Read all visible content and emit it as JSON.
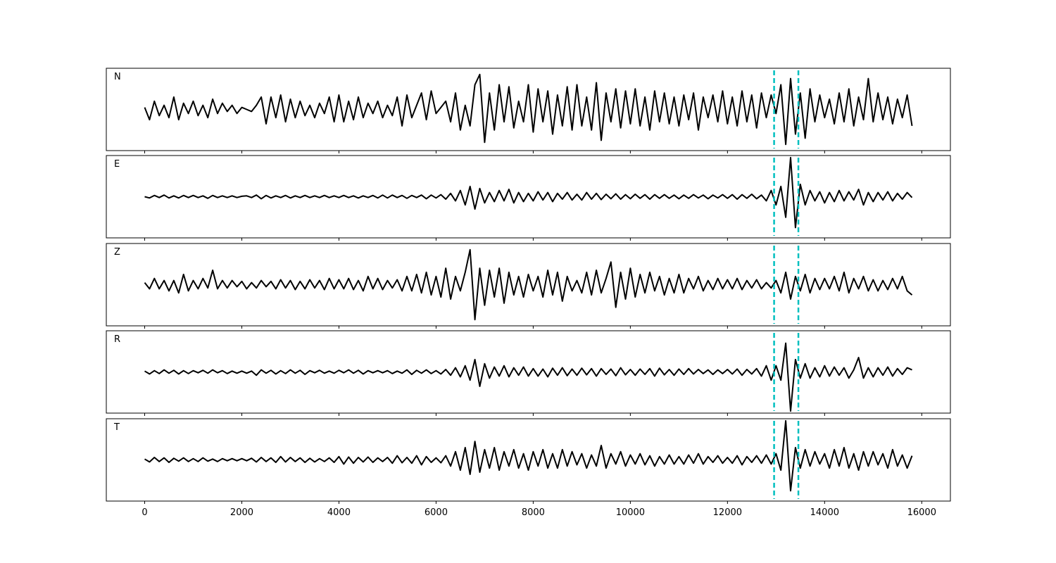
{
  "chart_data": {
    "type": "line",
    "color": "#000000",
    "pick_color": "#00bfbf",
    "xlim": [
      -790,
      16590
    ],
    "xticks": [
      0,
      2000,
      4000,
      6000,
      8000,
      10000,
      12000,
      14000,
      16000
    ],
    "ylim": [
      -1,
      1
    ],
    "picks": [
      12960,
      13460
    ],
    "x": [
      0,
      100,
      200,
      300,
      400,
      500,
      600,
      700,
      800,
      900,
      1000,
      1100,
      1200,
      1300,
      1400,
      1500,
      1600,
      1700,
      1800,
      1900,
      2000,
      2100,
      2200,
      2300,
      2400,
      2500,
      2600,
      2700,
      2800,
      2900,
      3000,
      3100,
      3200,
      3300,
      3400,
      3500,
      3600,
      3700,
      3800,
      3900,
      4000,
      4100,
      4200,
      4300,
      4400,
      4500,
      4600,
      4700,
      4800,
      4900,
      5000,
      5100,
      5200,
      5300,
      5400,
      5500,
      5600,
      5700,
      5800,
      5900,
      6000,
      6100,
      6200,
      6300,
      6400,
      6500,
      6600,
      6700,
      6800,
      6900,
      7000,
      7100,
      7200,
      7300,
      7400,
      7500,
      7600,
      7700,
      7800,
      7900,
      8000,
      8100,
      8200,
      8300,
      8400,
      8500,
      8600,
      8700,
      8800,
      8900,
      9000,
      9100,
      9200,
      9300,
      9400,
      9500,
      9600,
      9700,
      9800,
      9900,
      10000,
      10100,
      10200,
      10300,
      10400,
      10500,
      10600,
      10700,
      10800,
      10900,
      11000,
      11100,
      11200,
      11300,
      11400,
      11500,
      11600,
      11700,
      11800,
      11900,
      12000,
      12100,
      12200,
      12300,
      12400,
      12500,
      12600,
      12700,
      12800,
      12900,
      13000,
      13100,
      13200,
      13300,
      13400,
      13500,
      13600,
      13700,
      13800,
      13900,
      14000,
      14100,
      14200,
      14300,
      14400,
      14500,
      14600,
      14700,
      14800,
      14900,
      15000,
      15100,
      15200,
      15300,
      15400,
      15500,
      15600,
      15700,
      15800
    ],
    "panels": [
      {
        "title": "N",
        "values": [
          0.05,
          -0.25,
          0.2,
          -0.15,
          0.1,
          -0.2,
          0.3,
          -0.25,
          0.15,
          -0.1,
          0.2,
          -0.15,
          0.1,
          -0.2,
          0.25,
          -0.1,
          0.15,
          -0.05,
          0.1,
          -0.1,
          0.05,
          0.0,
          -0.05,
          0.1,
          0.3,
          -0.35,
          0.3,
          -0.2,
          0.35,
          -0.3,
          0.25,
          -0.2,
          0.2,
          -0.15,
          0.1,
          -0.2,
          0.15,
          -0.1,
          0.3,
          -0.3,
          0.35,
          -0.3,
          0.2,
          -0.25,
          0.3,
          -0.2,
          0.15,
          -0.1,
          0.2,
          -0.2,
          0.1,
          -0.15,
          0.3,
          -0.4,
          0.35,
          -0.2,
          0.1,
          0.4,
          -0.25,
          0.45,
          -0.1,
          0.05,
          0.2,
          -0.3,
          0.4,
          -0.5,
          0.1,
          -0.4,
          0.6,
          0.85,
          -0.8,
          0.4,
          -0.5,
          0.6,
          -0.3,
          0.55,
          -0.45,
          0.2,
          -0.3,
          0.6,
          -0.55,
          0.5,
          -0.3,
          0.45,
          -0.6,
          0.35,
          -0.4,
          0.55,
          -0.5,
          0.6,
          -0.4,
          0.3,
          -0.5,
          0.65,
          -0.75,
          0.4,
          -0.3,
          0.5,
          -0.45,
          0.45,
          -0.35,
          0.5,
          -0.4,
          0.3,
          -0.5,
          0.45,
          -0.3,
          0.4,
          -0.35,
          0.3,
          -0.4,
          0.35,
          -0.25,
          0.4,
          -0.5,
          0.3,
          -0.2,
          0.35,
          -0.3,
          0.45,
          -0.35,
          0.3,
          -0.4,
          0.45,
          -0.3,
          0.35,
          -0.45,
          0.4,
          -0.2,
          0.35,
          -0.1,
          0.6,
          -0.85,
          0.75,
          -0.6,
          0.4,
          -0.7,
          0.5,
          -0.3,
          0.35,
          -0.2,
          0.25,
          -0.35,
          0.4,
          -0.3,
          0.5,
          -0.4,
          0.3,
          -0.25,
          0.75,
          -0.3,
          0.4,
          -0.25,
          0.3,
          -0.35,
          0.25,
          -0.2,
          0.35,
          -0.4
        ]
      },
      {
        "title": "E",
        "values": [
          0.0,
          -0.03,
          0.03,
          -0.02,
          0.04,
          -0.03,
          0.02,
          -0.03,
          0.03,
          -0.02,
          0.03,
          -0.02,
          0.02,
          -0.04,
          0.03,
          -0.02,
          0.02,
          -0.02,
          0.02,
          -0.02,
          0.01,
          0.02,
          -0.02,
          0.04,
          -0.05,
          0.03,
          -0.03,
          0.02,
          -0.02,
          0.03,
          -0.03,
          0.02,
          -0.02,
          0.03,
          -0.02,
          0.02,
          -0.02,
          0.03,
          -0.02,
          0.02,
          -0.02,
          0.03,
          -0.02,
          0.02,
          -0.03,
          0.02,
          -0.02,
          0.03,
          -0.03,
          0.04,
          -0.03,
          0.04,
          -0.02,
          0.03,
          -0.04,
          0.03,
          -0.02,
          0.04,
          -0.05,
          0.04,
          -0.03,
          0.05,
          -0.06,
          0.08,
          -0.1,
          0.15,
          -0.2,
          0.25,
          -0.3,
          0.2,
          -0.15,
          0.1,
          -0.12,
          0.15,
          -0.1,
          0.18,
          -0.15,
          0.1,
          -0.12,
          0.08,
          -0.1,
          0.12,
          -0.08,
          0.1,
          -0.12,
          0.08,
          -0.06,
          0.1,
          -0.08,
          0.06,
          -0.08,
          0.1,
          -0.06,
          0.08,
          -0.07,
          0.06,
          -0.05,
          0.07,
          -0.06,
          0.05,
          -0.05,
          0.06,
          -0.04,
          0.05,
          -0.06,
          0.05,
          -0.04,
          0.05,
          -0.04,
          0.04,
          -0.05,
          0.04,
          -0.04,
          0.05,
          -0.03,
          0.04,
          -0.05,
          0.04,
          -0.03,
          0.05,
          -0.04,
          0.05,
          -0.06,
          0.05,
          -0.04,
          0.06,
          -0.05,
          0.04,
          -0.1,
          0.15,
          -0.2,
          0.25,
          -0.5,
          0.95,
          -0.75,
          0.3,
          -0.2,
          0.15,
          -0.1,
          0.12,
          -0.15,
          0.1,
          -0.12,
          0.15,
          -0.1,
          0.12,
          -0.08,
          0.18,
          -0.2,
          0.1,
          -0.12,
          0.1,
          -0.08,
          0.12,
          -0.1,
          0.08,
          -0.06,
          0.1,
          -0.02
        ]
      },
      {
        "title": "Z",
        "values": [
          0.05,
          -0.1,
          0.15,
          -0.1,
          0.1,
          -0.15,
          0.1,
          -0.2,
          0.25,
          -0.15,
          0.1,
          -0.1,
          0.15,
          -0.08,
          0.35,
          -0.1,
          0.1,
          -0.08,
          0.1,
          -0.05,
          0.08,
          -0.1,
          0.05,
          -0.08,
          0.1,
          -0.05,
          0.08,
          -0.1,
          0.12,
          -0.08,
          0.1,
          -0.12,
          0.08,
          -0.1,
          0.12,
          -0.08,
          0.1,
          -0.12,
          0.15,
          -0.1,
          0.12,
          -0.1,
          0.15,
          -0.12,
          0.1,
          -0.15,
          0.2,
          -0.1,
          0.15,
          -0.12,
          0.1,
          -0.08,
          0.12,
          -0.15,
          0.2,
          -0.15,
          0.25,
          -0.2,
          0.3,
          -0.25,
          0.2,
          -0.3,
          0.4,
          -0.35,
          0.2,
          -0.15,
          0.3,
          0.85,
          -0.85,
          0.4,
          -0.5,
          0.35,
          -0.3,
          0.4,
          -0.45,
          0.3,
          -0.25,
          0.2,
          -0.3,
          0.25,
          -0.15,
          0.2,
          -0.3,
          0.35,
          -0.25,
          0.3,
          -0.4,
          0.2,
          -0.15,
          0.1,
          -0.2,
          0.3,
          -0.25,
          0.35,
          -0.2,
          0.15,
          0.55,
          -0.55,
          0.3,
          -0.35,
          0.4,
          -0.3,
          0.25,
          -0.2,
          0.3,
          -0.15,
          0.2,
          -0.25,
          0.15,
          -0.2,
          0.25,
          -0.2,
          0.15,
          -0.1,
          0.2,
          -0.15,
          0.1,
          -0.12,
          0.15,
          -0.1,
          0.12,
          -0.1,
          0.15,
          -0.12,
          0.1,
          -0.08,
          0.12,
          -0.1,
          0.05,
          -0.08,
          0.1,
          -0.2,
          0.3,
          -0.35,
          0.2,
          -0.15,
          0.25,
          -0.2,
          0.15,
          -0.12,
          0.15,
          -0.1,
          0.2,
          -0.15,
          0.3,
          -0.2,
          0.15,
          -0.1,
          0.2,
          -0.15,
          0.12,
          -0.15,
          0.1,
          -0.12,
          0.15,
          -0.1,
          0.2,
          -0.15,
          -0.25
        ]
      },
      {
        "title": "R",
        "values": [
          0.02,
          -0.05,
          0.03,
          -0.04,
          0.05,
          -0.03,
          0.04,
          -0.05,
          0.03,
          -0.04,
          0.03,
          -0.02,
          0.04,
          -0.03,
          0.05,
          -0.02,
          0.03,
          -0.04,
          0.02,
          -0.03,
          0.02,
          -0.03,
          0.02,
          -0.08,
          0.05,
          -0.03,
          0.04,
          -0.05,
          0.03,
          -0.04,
          0.05,
          -0.03,
          0.04,
          -0.06,
          0.03,
          -0.02,
          0.04,
          -0.03,
          0.02,
          -0.03,
          0.04,
          -0.02,
          0.05,
          -0.03,
          0.04,
          -0.05,
          0.03,
          -0.02,
          0.03,
          -0.02,
          0.03,
          -0.04,
          0.02,
          -0.03,
          0.05,
          -0.06,
          0.04,
          -0.03,
          0.05,
          -0.04,
          0.03,
          -0.05,
          0.06,
          -0.08,
          0.1,
          -0.12,
          0.15,
          -0.2,
          0.3,
          -0.35,
          0.2,
          -0.15,
          0.12,
          -0.1,
          0.15,
          -0.12,
          0.1,
          -0.08,
          0.12,
          -0.1,
          0.08,
          -0.1,
          0.07,
          -0.12,
          0.09,
          -0.08,
          0.1,
          -0.09,
          0.07,
          -0.08,
          0.09,
          -0.07,
          0.08,
          -0.1,
          0.08,
          -0.06,
          0.07,
          -0.09,
          0.1,
          -0.07,
          0.06,
          -0.08,
          0.07,
          -0.06,
          0.08,
          -0.1,
          0.09,
          -0.07,
          0.06,
          -0.08,
          0.07,
          -0.06,
          0.08,
          -0.05,
          0.06,
          -0.04,
          0.05,
          -0.06,
          0.05,
          -0.04,
          0.06,
          -0.05,
          0.07,
          -0.08,
          0.06,
          -0.05,
          0.08,
          -0.1,
          0.15,
          -0.2,
          0.15,
          -0.2,
          0.7,
          -0.95,
          0.3,
          -0.15,
          0.2,
          -0.15,
          0.1,
          -0.12,
          0.15,
          -0.1,
          0.12,
          -0.08,
          0.1,
          -0.15,
          0.05,
          0.35,
          -0.15,
          0.1,
          -0.12,
          0.1,
          -0.08,
          0.12,
          -0.1,
          0.08,
          -0.06,
          0.1,
          0.05
        ]
      },
      {
        "title": "T",
        "values": [
          0.02,
          -0.05,
          0.06,
          -0.04,
          0.05,
          -0.06,
          0.04,
          -0.03,
          0.05,
          -0.04,
          0.03,
          -0.04,
          0.05,
          -0.03,
          0.02,
          -0.04,
          0.03,
          -0.02,
          0.03,
          -0.02,
          0.03,
          -0.02,
          0.04,
          -0.05,
          0.06,
          -0.04,
          0.05,
          -0.06,
          0.08,
          -0.05,
          0.06,
          -0.04,
          0.05,
          -0.06,
          0.04,
          -0.05,
          0.03,
          -0.04,
          0.05,
          -0.06,
          0.08,
          -0.1,
          0.07,
          -0.08,
          0.06,
          -0.05,
          0.07,
          -0.06,
          0.05,
          -0.04,
          0.06,
          -0.08,
          0.1,
          -0.07,
          0.06,
          -0.08,
          0.1,
          -0.12,
          0.08,
          -0.06,
          0.05,
          -0.07,
          0.1,
          -0.15,
          0.2,
          -0.25,
          0.3,
          -0.35,
          0.45,
          -0.3,
          0.25,
          -0.2,
          0.3,
          -0.25,
          0.2,
          -0.15,
          0.25,
          -0.2,
          0.15,
          -0.25,
          0.2,
          -0.15,
          0.25,
          -0.2,
          0.15,
          -0.2,
          0.25,
          -0.15,
          0.2,
          -0.12,
          0.15,
          -0.2,
          0.12,
          -0.15,
          0.35,
          -0.2,
          0.15,
          -0.1,
          0.2,
          -0.15,
          0.12,
          -0.1,
          0.15,
          -0.12,
          0.1,
          -0.15,
          0.08,
          -0.1,
          0.12,
          -0.1,
          0.08,
          -0.1,
          0.12,
          -0.08,
          0.15,
          -0.1,
          0.08,
          -0.06,
          0.1,
          -0.08,
          0.06,
          -0.08,
          0.1,
          -0.12,
          0.08,
          -0.06,
          0.1,
          -0.08,
          0.12,
          -0.1,
          0.15,
          -0.25,
          0.95,
          -0.75,
          0.3,
          -0.2,
          0.25,
          -0.15,
          0.2,
          -0.1,
          0.15,
          -0.2,
          0.25,
          -0.15,
          0.3,
          -0.2,
          0.15,
          -0.25,
          0.2,
          -0.15,
          0.2,
          -0.12,
          0.15,
          -0.2,
          0.25,
          -0.15,
          0.12,
          -0.2,
          0.1
        ]
      }
    ]
  }
}
